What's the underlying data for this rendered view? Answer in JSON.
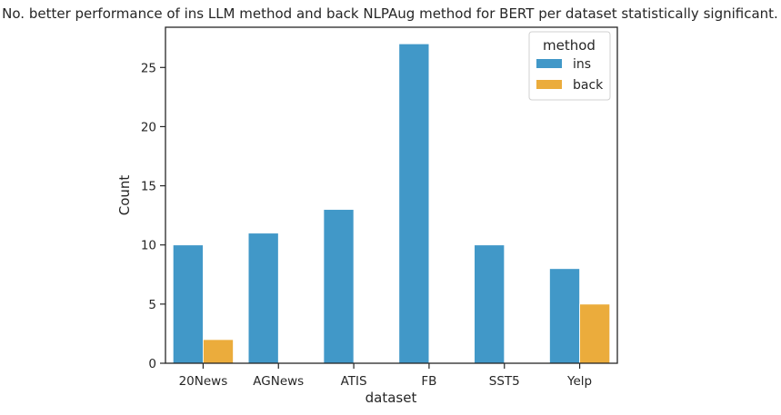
{
  "chart_data": {
    "type": "bar",
    "title": "No. better performance of ins LLM method and back NLPAug method for BERT per dataset statistically significant.",
    "xlabel": "dataset",
    "ylabel": "Count",
    "categories": [
      "20News",
      "AGNews",
      "ATIS",
      "FB",
      "SST5",
      "Yelp"
    ],
    "series": [
      {
        "name": "ins",
        "values": [
          10,
          11,
          13,
          27,
          10,
          8
        ],
        "color": "#4198c8"
      },
      {
        "name": "back",
        "values": [
          2,
          0,
          0,
          0,
          0,
          5
        ],
        "color": "#ebac3c"
      }
    ],
    "ylim": [
      0,
      28.4
    ],
    "yticks": [
      0,
      5,
      10,
      15,
      20,
      25
    ],
    "grid": false,
    "legend": {
      "title": "method",
      "placement": "top-right"
    }
  }
}
